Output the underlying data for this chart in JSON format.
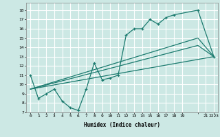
{
  "xlabel": "Humidex (Indice chaleur)",
  "bg_color": "#cce8e4",
  "grid_color": "#ffffff",
  "line_color": "#1a7a6e",
  "xlim": [
    -0.5,
    23.5
  ],
  "ylim": [
    7,
    18.8
  ],
  "yticks": [
    7,
    8,
    9,
    10,
    11,
    12,
    13,
    14,
    15,
    16,
    17,
    18
  ],
  "line1_x": [
    0,
    1,
    2,
    3,
    4,
    5,
    6,
    7,
    8,
    9,
    10,
    11,
    12,
    13,
    14,
    15,
    16,
    17,
    18,
    21,
    23
  ],
  "line1_y": [
    11.0,
    8.5,
    9.0,
    9.5,
    8.2,
    7.5,
    7.2,
    9.5,
    12.3,
    10.5,
    10.7,
    11.0,
    15.3,
    16.0,
    16.0,
    17.0,
    16.5,
    17.2,
    17.5,
    18.0,
    13.0
  ],
  "line2_x": [
    0,
    21,
    23
  ],
  "line2_y": [
    9.5,
    15.0,
    13.0
  ],
  "line3_x": [
    0,
    21,
    23
  ],
  "line3_y": [
    9.5,
    14.2,
    13.0
  ],
  "line4_x": [
    0,
    23
  ],
  "line4_y": [
    9.5,
    13.0
  ],
  "xtick_positions": [
    0,
    1,
    2,
    3,
    4,
    5,
    6,
    7,
    8,
    9,
    10,
    11,
    12,
    13,
    14,
    15,
    16,
    17,
    18,
    19,
    21,
    22,
    23
  ],
  "xtick_labels": [
    "0",
    "1",
    "2",
    "3",
    "4",
    "5",
    "6",
    "7",
    "8",
    "9",
    "10",
    "11",
    "12",
    "13",
    "14",
    "15",
    "16",
    "17",
    "18",
    "19",
    "",
    "21",
    "2223"
  ]
}
